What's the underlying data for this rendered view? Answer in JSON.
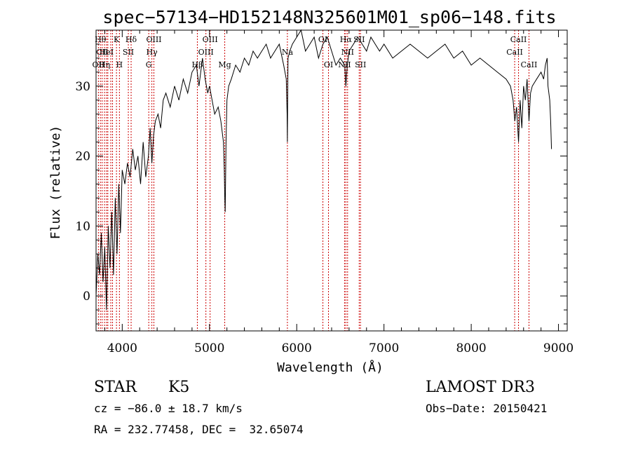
{
  "chart_data": {
    "type": "line",
    "title": "spec−57134−HD152148N325601M01_sp06−148.fits",
    "xlabel": "Wavelength (Å)",
    "ylabel": "Flux (relative)",
    "xlim": [
      3700,
      9100
    ],
    "ylim": [
      -5,
      38
    ],
    "x_ticks": [
      4000,
      5000,
      6000,
      7000,
      8000,
      9000
    ],
    "y_ticks": [
      0,
      10,
      20,
      30
    ],
    "grid": false,
    "line_color": "#000000",
    "marker_color": "#cc0000",
    "series": [
      {
        "x": [
          3700,
          3720,
          3740,
          3760,
          3780,
          3800,
          3820,
          3840,
          3860,
          3880,
          3900,
          3920,
          3940,
          3960,
          3980,
          4000,
          4030,
          4060,
          4090,
          4120,
          4150,
          4180,
          4210,
          4240,
          4270,
          4300,
          4320,
          4340,
          4360,
          4380,
          4410,
          4440,
          4470,
          4500,
          4550,
          4600,
          4650,
          4700,
          4750,
          4800,
          4850,
          4880,
          4900,
          4920,
          4950,
          4980,
          5000,
          5030,
          5060,
          5100,
          5130,
          5160,
          5170,
          5175,
          5180,
          5185,
          5190,
          5200,
          5220,
          5250,
          5300,
          5350,
          5400,
          5450,
          5500,
          5550,
          5600,
          5650,
          5700,
          5750,
          5800,
          5850,
          5880,
          5890,
          5893,
          5896,
          5900,
          5920,
          5950,
          6000,
          6050,
          6100,
          6150,
          6200,
          6250,
          6300,
          6350,
          6400,
          6450,
          6500,
          6550,
          6563,
          6580,
          6600,
          6650,
          6700,
          6750,
          6800,
          6850,
          6900,
          6950,
          7000,
          7100,
          7200,
          7300,
          7400,
          7500,
          7600,
          7700,
          7800,
          7900,
          8000,
          8100,
          8200,
          8300,
          8400,
          8450,
          8480,
          8500,
          8520,
          8542,
          8560,
          8580,
          8600,
          8620,
          8640,
          8662,
          8680,
          8700,
          8750,
          8800,
          8830,
          8850,
          8870,
          8880,
          8900,
          8910,
          8920
        ],
        "y": [
          0,
          6,
          3,
          9,
          2,
          7,
          -2,
          10,
          4,
          12,
          3,
          14,
          6,
          16,
          9,
          18,
          16,
          19,
          17,
          21,
          18,
          20,
          16,
          22,
          17,
          20,
          24,
          19,
          23,
          25,
          26,
          24,
          28,
          29,
          27,
          30,
          28,
          31,
          29,
          32,
          33,
          30,
          32,
          34,
          31,
          29,
          30,
          28,
          26,
          27,
          25,
          22,
          18,
          14,
          12,
          17,
          22,
          28,
          30,
          31,
          33,
          32,
          34,
          33,
          35,
          34,
          35,
          36,
          34,
          35,
          36,
          33,
          31,
          26,
          22,
          28,
          34,
          35,
          36,
          37,
          38,
          35,
          36,
          37,
          34,
          36,
          37,
          35,
          33,
          34,
          33,
          30,
          33,
          35,
          36,
          37,
          36,
          35,
          37,
          36,
          35,
          36,
          34,
          35,
          36,
          35,
          34,
          35,
          36,
          34,
          35,
          33,
          34,
          33,
          32,
          31,
          30,
          28,
          25,
          27,
          22,
          28,
          24,
          30,
          28,
          31,
          25,
          29,
          30,
          31,
          32,
          31,
          33,
          34,
          30,
          28,
          25,
          21
        ]
      }
    ],
    "line_markers": [
      {
        "x": 3727,
        "label": "OII",
        "row": 3
      },
      {
        "x": 3750,
        "label": "Hθ",
        "row": 1
      },
      {
        "x": 3770,
        "label": "CII",
        "row": 2
      },
      {
        "x": 3797,
        "label": "Hη",
        "row": 3
      },
      {
        "x": 3820,
        "label": "HeI",
        "row": 2
      },
      {
        "x": 3835,
        "label": "",
        "row": 0
      },
      {
        "x": 3869,
        "label": "",
        "row": 0
      },
      {
        "x": 3889,
        "label": "",
        "row": 0
      },
      {
        "x": 3934,
        "label": "K",
        "row": 1
      },
      {
        "x": 3968,
        "label": "H",
        "row": 3
      },
      {
        "x": 4070,
        "label": "SII",
        "row": 2
      },
      {
        "x": 4102,
        "label": "Hδ",
        "row": 1
      },
      {
        "x": 4304,
        "label": "G",
        "row": 3
      },
      {
        "x": 4340,
        "label": "Hγ",
        "row": 2
      },
      {
        "x": 4363,
        "label": "OIII",
        "row": 1
      },
      {
        "x": 4861,
        "label": "Hβ",
        "row": 3
      },
      {
        "x": 4959,
        "label": "OIII",
        "row": 2
      },
      {
        "x": 5007,
        "label": "OIII",
        "row": 1
      },
      {
        "x": 5175,
        "label": "Mg",
        "row": 3
      },
      {
        "x": 5893,
        "label": "Na",
        "row": 2
      },
      {
        "x": 6300,
        "label": "OI",
        "row": 1
      },
      {
        "x": 6364,
        "label": "OI",
        "row": 3
      },
      {
        "x": 6548,
        "label": "NII",
        "row": 3
      },
      {
        "x": 6563,
        "label": "Hα",
        "row": 1
      },
      {
        "x": 6583,
        "label": "NII",
        "row": 2
      },
      {
        "x": 6716,
        "label": "SII",
        "row": 1
      },
      {
        "x": 6731,
        "label": "SII",
        "row": 3
      },
      {
        "x": 8498,
        "label": "CaII",
        "row": 2
      },
      {
        "x": 8542,
        "label": "CaII",
        "row": 1
      },
      {
        "x": 8662,
        "label": "CaII",
        "row": 3
      }
    ]
  },
  "info": {
    "object_class": "STAR",
    "subclass": "K5",
    "survey": "LAMOST DR3",
    "redshift_line": "cz = −86.0 ± 18.7 km/s",
    "obs_date_line": "Obs−Date: 20150421",
    "coords_line": "RA = 232.77458, DEC =  32.65074"
  }
}
